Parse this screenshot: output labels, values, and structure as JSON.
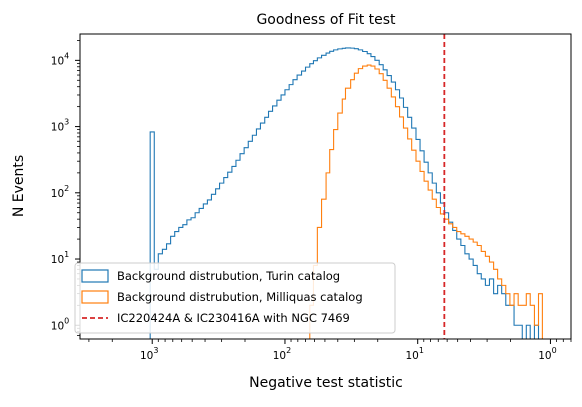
{
  "chart_data": {
    "type": "step-histogram",
    "title": "Goodness of Fit test",
    "xlabel": "Negative test statistic",
    "ylabel": "N Events",
    "x_scale": "log-reversed",
    "y_scale": "log",
    "xlim": [
      3500,
      0.7
    ],
    "ylim": [
      0.62,
      25000
    ],
    "x_ticks": [
      {
        "value": 1000,
        "base": "10",
        "exp": "3"
      },
      {
        "value": 100,
        "base": "10",
        "exp": "2"
      },
      {
        "value": 10,
        "base": "10",
        "exp": "1"
      },
      {
        "value": 1,
        "base": "10",
        "exp": "0"
      }
    ],
    "y_ticks": [
      {
        "value": 1,
        "base": "10",
        "exp": "0"
      },
      {
        "value": 10,
        "base": "10",
        "exp": "1"
      },
      {
        "value": 100,
        "base": "10",
        "exp": "2"
      },
      {
        "value": 1000,
        "base": "10",
        "exp": "3"
      },
      {
        "value": 10000,
        "base": "10",
        "exp": "4"
      }
    ],
    "series": [
      {
        "name": "Background distrubution, Turin catalog",
        "color": "#1f77b4",
        "style": "step",
        "bins": [
          [
            1036,
            965,
            830
          ],
          [
            965,
            900,
            7
          ],
          [
            900,
            838,
            12
          ],
          [
            838,
            780,
            14
          ],
          [
            780,
            727,
            17
          ],
          [
            727,
            677,
            22
          ],
          [
            677,
            631,
            26
          ],
          [
            631,
            588,
            30
          ],
          [
            588,
            548,
            33
          ],
          [
            548,
            510,
            39
          ],
          [
            510,
            475,
            42
          ],
          [
            475,
            443,
            50
          ],
          [
            443,
            412,
            58
          ],
          [
            412,
            384,
            68
          ],
          [
            384,
            358,
            78
          ],
          [
            358,
            333,
            95
          ],
          [
            333,
            311,
            115
          ],
          [
            311,
            289,
            140
          ],
          [
            289,
            270,
            170
          ],
          [
            270,
            251,
            205
          ],
          [
            251,
            234,
            250
          ],
          [
            234,
            218,
            310
          ],
          [
            218,
            203,
            390
          ],
          [
            203,
            189,
            480
          ],
          [
            189,
            176,
            600
          ],
          [
            176,
            164,
            740
          ],
          [
            164,
            153,
            920
          ],
          [
            153,
            142,
            1130
          ],
          [
            142,
            133,
            1380
          ],
          [
            133,
            124,
            1700
          ],
          [
            124,
            115,
            2050
          ],
          [
            115,
            107,
            2500
          ],
          [
            107,
            100,
            3000
          ],
          [
            100,
            93,
            3600
          ],
          [
            93,
            87,
            4300
          ],
          [
            87,
            81,
            5100
          ],
          [
            81,
            75,
            6000
          ],
          [
            75,
            70,
            6900
          ],
          [
            70,
            65,
            7900
          ],
          [
            65,
            61,
            8900
          ],
          [
            61,
            57,
            9900
          ],
          [
            57,
            53,
            10900
          ],
          [
            53,
            49,
            11900
          ],
          [
            49,
            46,
            12900
          ],
          [
            46,
            43,
            13700
          ],
          [
            43,
            40,
            14400
          ],
          [
            40,
            37,
            14900
          ],
          [
            37,
            35,
            15200
          ],
          [
            35,
            32,
            15400
          ],
          [
            32,
            30,
            15300
          ],
          [
            30,
            28,
            15000
          ],
          [
            28,
            26,
            14400
          ],
          [
            26,
            24,
            13600
          ],
          [
            24,
            22.5,
            12600
          ],
          [
            22.5,
            21,
            11400
          ],
          [
            21,
            19.5,
            10000
          ],
          [
            19.5,
            18.2,
            8600
          ],
          [
            18.2,
            17,
            7200
          ],
          [
            17,
            15.8,
            5900
          ],
          [
            15.8,
            14.7,
            4700
          ],
          [
            14.7,
            13.7,
            3600
          ],
          [
            13.7,
            12.8,
            2700
          ],
          [
            12.8,
            11.9,
            1950
          ],
          [
            11.9,
            11.1,
            1380
          ],
          [
            11.1,
            10.3,
            950
          ],
          [
            10.3,
            9.6,
            640
          ],
          [
            9.6,
            8.95,
            430
          ],
          [
            8.95,
            8.34,
            290
          ],
          [
            8.34,
            7.77,
            200
          ],
          [
            7.77,
            7.24,
            140
          ],
          [
            7.24,
            6.74,
            100
          ],
          [
            6.74,
            6.28,
            70
          ],
          [
            6.28,
            5.85,
            50
          ],
          [
            5.85,
            5.45,
            36
          ],
          [
            5.45,
            5.08,
            27
          ],
          [
            5.08,
            4.73,
            20
          ],
          [
            4.73,
            4.41,
            16
          ],
          [
            4.41,
            4.1,
            12
          ],
          [
            4.1,
            3.82,
            10
          ],
          [
            3.82,
            3.56,
            8
          ],
          [
            3.56,
            3.32,
            6
          ],
          [
            3.32,
            3.09,
            5
          ],
          [
            3.09,
            2.88,
            4
          ],
          [
            2.88,
            2.68,
            5
          ],
          [
            2.68,
            2.5,
            3
          ],
          [
            2.5,
            2.33,
            4
          ],
          [
            2.33,
            2.17,
            3
          ],
          [
            2.17,
            2.02,
            2
          ],
          [
            2.02,
            1.88,
            2
          ],
          [
            1.88,
            1.75,
            1
          ],
          [
            1.75,
            1.63,
            1
          ],
          [
            1.63,
            1.52,
            0.5
          ],
          [
            1.52,
            1.42,
            1
          ],
          [
            1.42,
            1.32,
            0.5
          ],
          [
            1.32,
            1.23,
            1
          ]
        ]
      },
      {
        "name": "Background distrubution, Milliquas catalog",
        "color": "#ff7f0e",
        "style": "step",
        "bins": [
          [
            70,
            65,
            0.5
          ],
          [
            65,
            61,
            2
          ],
          [
            61,
            57,
            8
          ],
          [
            57,
            53,
            30
          ],
          [
            53,
            49,
            80
          ],
          [
            49,
            46,
            200
          ],
          [
            46,
            43,
            450
          ],
          [
            43,
            40,
            900
          ],
          [
            40,
            37,
            1600
          ],
          [
            37,
            35,
            2600
          ],
          [
            35,
            32,
            3800
          ],
          [
            32,
            30,
            5100
          ],
          [
            30,
            28,
            6400
          ],
          [
            28,
            26,
            7500
          ],
          [
            26,
            24,
            8200
          ],
          [
            24,
            22.5,
            8500
          ],
          [
            22.5,
            21,
            8200
          ],
          [
            21,
            19.5,
            7400
          ],
          [
            19.5,
            18.2,
            6300
          ],
          [
            18.2,
            17,
            5000
          ],
          [
            17,
            15.8,
            3800
          ],
          [
            15.8,
            14.7,
            2800
          ],
          [
            14.7,
            13.7,
            2000
          ],
          [
            13.7,
            12.8,
            1400
          ],
          [
            12.8,
            11.9,
            950
          ],
          [
            11.9,
            11.1,
            650
          ],
          [
            11.1,
            10.3,
            440
          ],
          [
            10.3,
            9.6,
            300
          ],
          [
            9.6,
            8.95,
            210
          ],
          [
            8.95,
            8.34,
            150
          ],
          [
            8.34,
            7.77,
            110
          ],
          [
            7.77,
            7.24,
            80
          ],
          [
            7.24,
            6.74,
            60
          ],
          [
            6.74,
            6.28,
            48
          ],
          [
            6.28,
            5.85,
            40
          ],
          [
            5.85,
            5.45,
            34
          ],
          [
            5.45,
            5.08,
            30
          ],
          [
            5.08,
            4.73,
            26
          ],
          [
            4.73,
            4.41,
            24
          ],
          [
            4.41,
            4.1,
            22
          ],
          [
            4.1,
            3.82,
            20
          ],
          [
            3.82,
            3.56,
            18
          ],
          [
            3.56,
            3.32,
            16
          ],
          [
            3.32,
            3.09,
            13
          ],
          [
            3.09,
            2.88,
            11
          ],
          [
            2.88,
            2.68,
            9
          ],
          [
            2.68,
            2.5,
            7
          ],
          [
            2.5,
            2.33,
            5
          ],
          [
            2.33,
            2.17,
            4
          ],
          [
            2.17,
            2.02,
            3
          ],
          [
            2.02,
            1.88,
            2
          ],
          [
            1.88,
            1.75,
            3
          ],
          [
            1.75,
            1.63,
            2
          ],
          [
            1.63,
            1.52,
            2
          ],
          [
            1.52,
            1.42,
            3
          ],
          [
            1.42,
            1.32,
            2
          ],
          [
            1.32,
            1.23,
            1
          ],
          [
            1.23,
            1.15,
            3
          ],
          [
            1.15,
            1.07,
            0.5
          ]
        ]
      }
    ],
    "vline": {
      "name": "IC220424A & IC230416A with NGC 7469",
      "x": 6.3,
      "color": "#d62728",
      "style": "dashed"
    },
    "legend_position": "lower-left"
  }
}
